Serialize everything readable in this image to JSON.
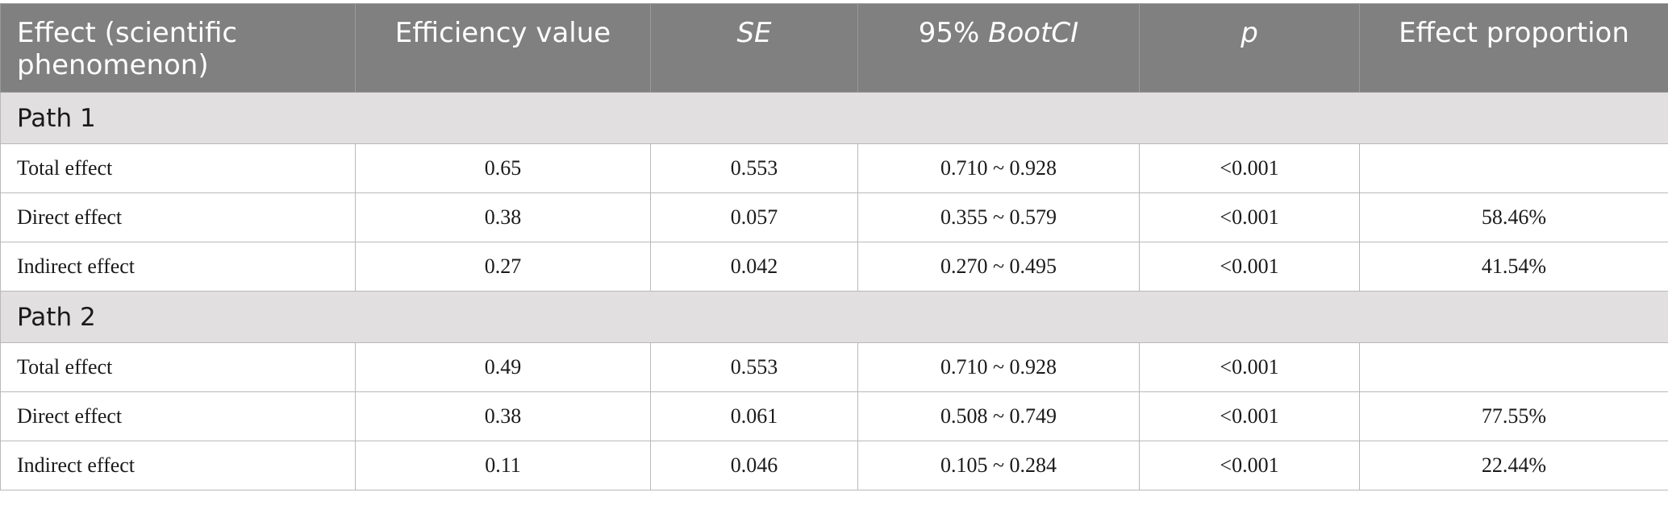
{
  "table": {
    "headers": {
      "effect": "Effect (scientific phenomenon)",
      "efficiency": "Efficiency value",
      "se": "SE",
      "ci_prefix": "95%",
      "ci_name": "BootCI",
      "p": "p",
      "proportion": "Effect proportion"
    },
    "sections": [
      {
        "title": "Path 1",
        "rows": [
          {
            "effect": "Total effect",
            "value": "0.65",
            "se": "0.553",
            "ci": "0.710 ~ 0.928",
            "p": "<0.001",
            "proportion": ""
          },
          {
            "effect": "Direct effect",
            "value": "0.38",
            "se": "0.057",
            "ci": "0.355 ~ 0.579",
            "p": "<0.001",
            "proportion": "58.46%"
          },
          {
            "effect": "Indirect effect",
            "value": "0.27",
            "se": "0.042",
            "ci": "0.270 ~ 0.495",
            "p": "<0.001",
            "proportion": "41.54%"
          }
        ]
      },
      {
        "title": "Path 2",
        "rows": [
          {
            "effect": "Total effect",
            "value": "0.49",
            "se": "0.553",
            "ci": "0.710 ~ 0.928",
            "p": "<0.001",
            "proportion": ""
          },
          {
            "effect": "Direct effect",
            "value": "0.38",
            "se": "0.061",
            "ci": "0.508 ~ 0.749",
            "p": "<0.001",
            "proportion": "77.55%"
          },
          {
            "effect": "Indirect effect",
            "value": "0.11",
            "se": "0.046",
            "ci": "0.105 ~ 0.284",
            "p": "<0.001",
            "proportion": "22.44%"
          }
        ]
      }
    ]
  }
}
